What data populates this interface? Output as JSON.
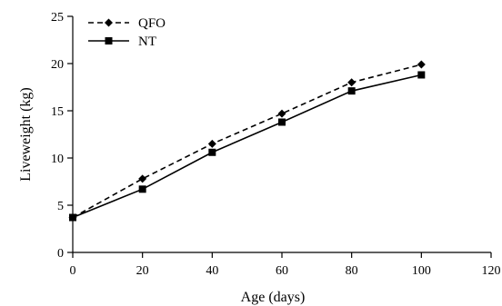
{
  "chart_data": {
    "type": "line",
    "xlabel": "Age (days)",
    "ylabel": "Liveweight (kg)",
    "xlim": [
      0,
      120
    ],
    "ylim": [
      0,
      25
    ],
    "xticks": [
      0,
      20,
      40,
      60,
      80,
      100,
      120
    ],
    "yticks": [
      0,
      5,
      10,
      15,
      20,
      25
    ],
    "grid": false,
    "legend_position": "top-left",
    "series": [
      {
        "name": "QFO",
        "marker": "diamond",
        "line_style": "dashed",
        "color": "#000000",
        "x": [
          0,
          20,
          40,
          60,
          80,
          100
        ],
        "y": [
          3.7,
          7.8,
          11.5,
          14.7,
          18.0,
          19.9
        ]
      },
      {
        "name": "NT",
        "marker": "square",
        "line_style": "solid",
        "color": "#000000",
        "x": [
          0,
          20,
          40,
          60,
          80,
          100
        ],
        "y": [
          3.7,
          6.7,
          10.6,
          13.8,
          17.1,
          18.8
        ]
      }
    ]
  }
}
